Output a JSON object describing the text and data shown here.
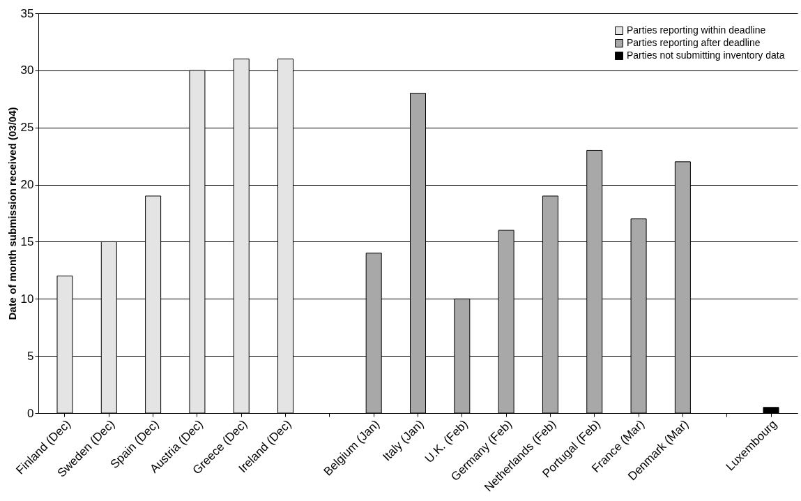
{
  "chart_data": {
    "type": "bar",
    "ylabel": "Date of month submission received (03/04)",
    "categories": [
      "Finland (Dec)",
      "Sweden (Dec)",
      "Spain (Dec)",
      "Austria (Dec)",
      "Greece (Dec)",
      "Ireland (Dec)",
      null,
      "Belgium (Jan)",
      "Italy (Jan)",
      "U.K. (Feb)",
      "Germany (Feb)",
      "Netherlands (Feb)",
      "Portugal (Feb)",
      "France (Mar)",
      "Denmark (Mar)",
      null,
      "Luxembourg"
    ],
    "series": [
      {
        "name": "Parties reporting within deadline",
        "color": "#e4e4e4",
        "values": [
          12,
          15,
          19,
          30,
          31,
          31,
          null,
          null,
          null,
          null,
          null,
          null,
          null,
          null,
          null,
          null,
          null
        ]
      },
      {
        "name": "Parties reporting after deadline",
        "color": "#a8a8a8",
        "values": [
          null,
          null,
          null,
          null,
          null,
          null,
          null,
          14,
          28,
          10,
          16,
          19,
          23,
          17,
          22,
          null,
          null
        ]
      },
      {
        "name": "Parties not submitting inventory data",
        "color": "#000000",
        "values": [
          null,
          null,
          null,
          null,
          null,
          null,
          null,
          null,
          null,
          null,
          null,
          null,
          null,
          null,
          null,
          null,
          0.5
        ]
      }
    ],
    "ylim": [
      0,
      35
    ],
    "yticks": [
      0,
      5,
      10,
      15,
      20,
      25,
      30,
      35
    ],
    "grid": "y",
    "legend": "top right"
  }
}
